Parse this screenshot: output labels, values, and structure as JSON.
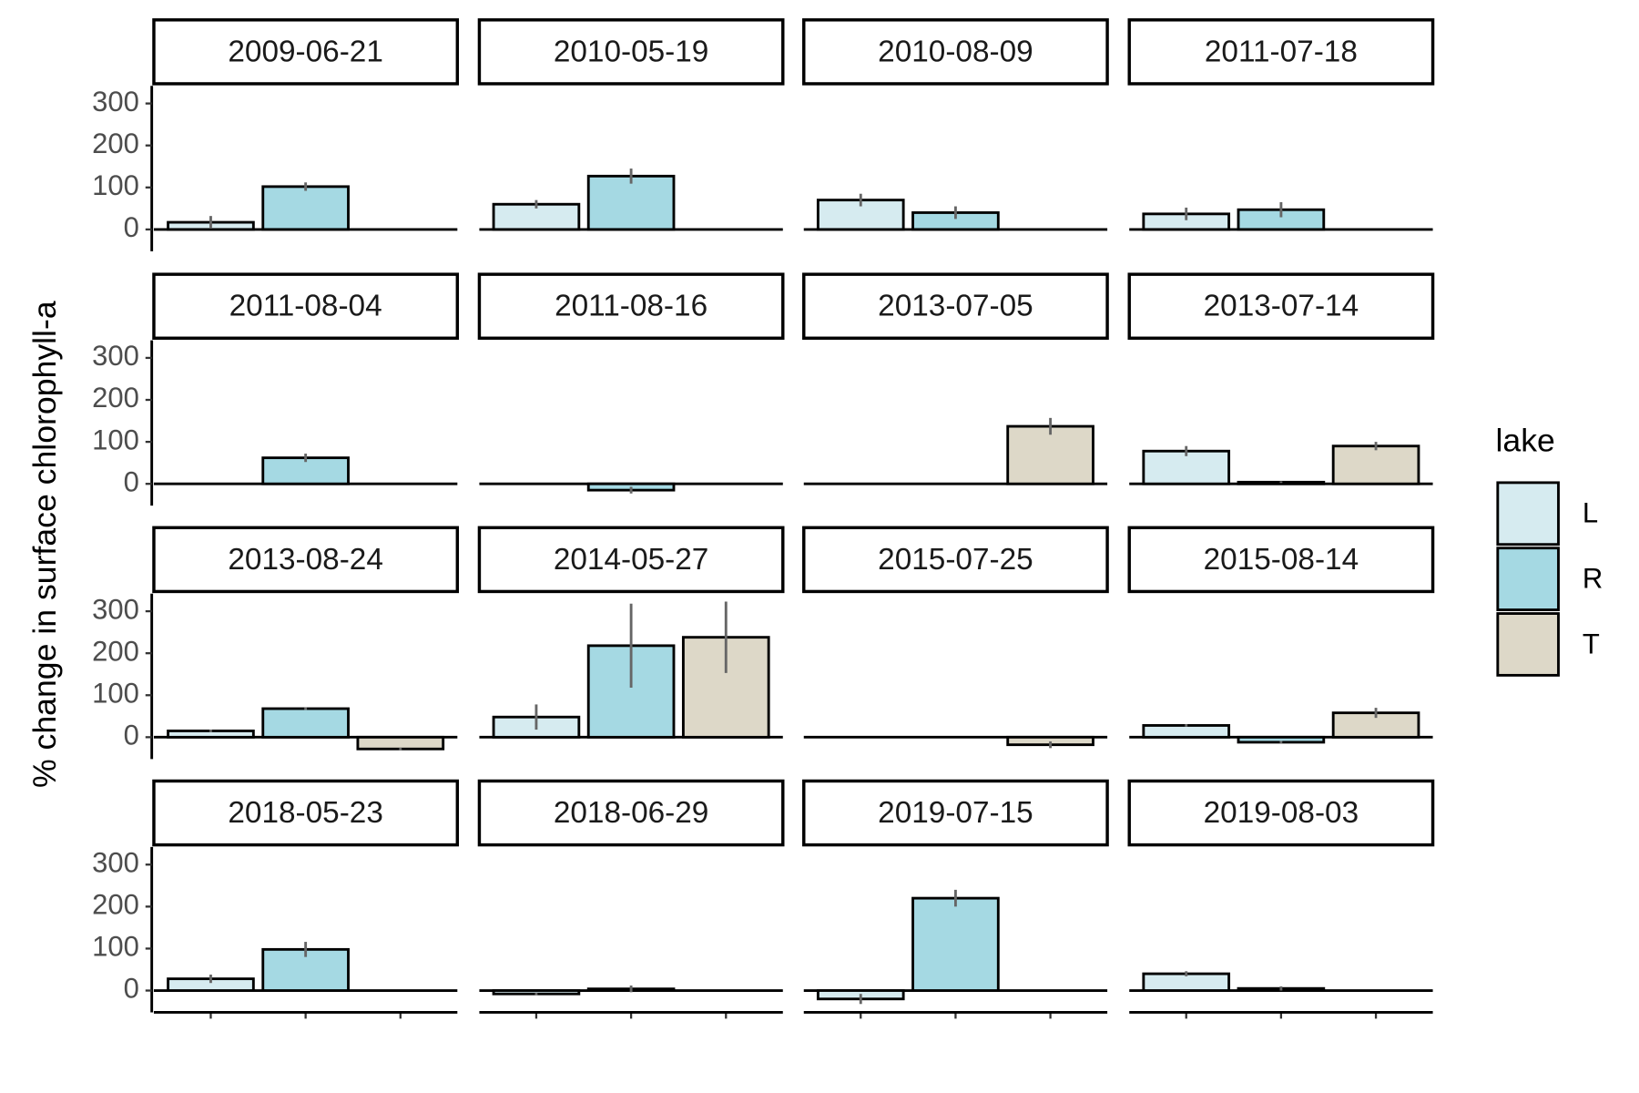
{
  "chart_data": {
    "type": "bar",
    "ylabel": "% change in surface chlorophyll-a",
    "legend_title": "lake",
    "legend_position": "right",
    "series_names": [
      "L",
      "R",
      "T"
    ],
    "colors": [
      "#d6ebf0",
      "#a5d9e3",
      "#ddd8c8"
    ],
    "error_color": "#666666",
    "ylim": [
      -52,
      342
    ],
    "yticks": [
      0,
      100,
      200,
      300
    ],
    "facets": [
      {
        "title": "2009-06-21",
        "values": [
          17,
          102,
          null
        ],
        "errors": [
          15,
          10,
          null
        ]
      },
      {
        "title": "2010-05-19",
        "values": [
          60,
          127,
          null
        ],
        "errors": [
          10,
          18,
          null
        ]
      },
      {
        "title": "2010-08-09",
        "values": [
          70,
          40,
          null
        ],
        "errors": [
          15,
          15,
          null
        ]
      },
      {
        "title": "2011-07-18",
        "values": [
          37,
          47,
          null
        ],
        "errors": [
          15,
          18,
          null
        ]
      },
      {
        "title": "2011-08-04",
        "values": [
          null,
          62,
          null
        ],
        "errors": [
          null,
          10,
          null
        ]
      },
      {
        "title": "2011-08-16",
        "values": [
          null,
          -15,
          null
        ],
        "errors": [
          null,
          8,
          null
        ]
      },
      {
        "title": "2013-07-05",
        "values": [
          null,
          null,
          137
        ],
        "errors": [
          null,
          null,
          20
        ]
      },
      {
        "title": "2013-07-14",
        "values": [
          78,
          4,
          90
        ],
        "errors": [
          12,
          2,
          10
        ]
      },
      {
        "title": "2013-08-24",
        "values": [
          15,
          68,
          -28
        ],
        "errors": [
          3,
          3,
          3
        ]
      },
      {
        "title": "2014-05-27",
        "values": [
          48,
          218,
          238
        ],
        "errors": [
          30,
          100,
          85
        ]
      },
      {
        "title": "2015-07-25",
        "values": [
          null,
          null,
          -18
        ],
        "errors": [
          null,
          null,
          8
        ]
      },
      {
        "title": "2015-08-14",
        "values": [
          28,
          -12,
          58
        ],
        "errors": [
          3,
          3,
          12
        ]
      },
      {
        "title": "2018-05-23",
        "values": [
          28,
          98,
          null
        ],
        "errors": [
          10,
          18,
          null
        ]
      },
      {
        "title": "2018-06-29",
        "values": [
          -8,
          4,
          null
        ],
        "errors": [
          3,
          8,
          null
        ]
      },
      {
        "title": "2019-07-15",
        "values": [
          -20,
          220,
          null
        ],
        "errors": [
          12,
          20,
          null
        ]
      },
      {
        "title": "2019-08-03",
        "values": [
          40,
          5,
          null
        ],
        "errors": [
          6,
          5,
          null
        ]
      }
    ]
  }
}
